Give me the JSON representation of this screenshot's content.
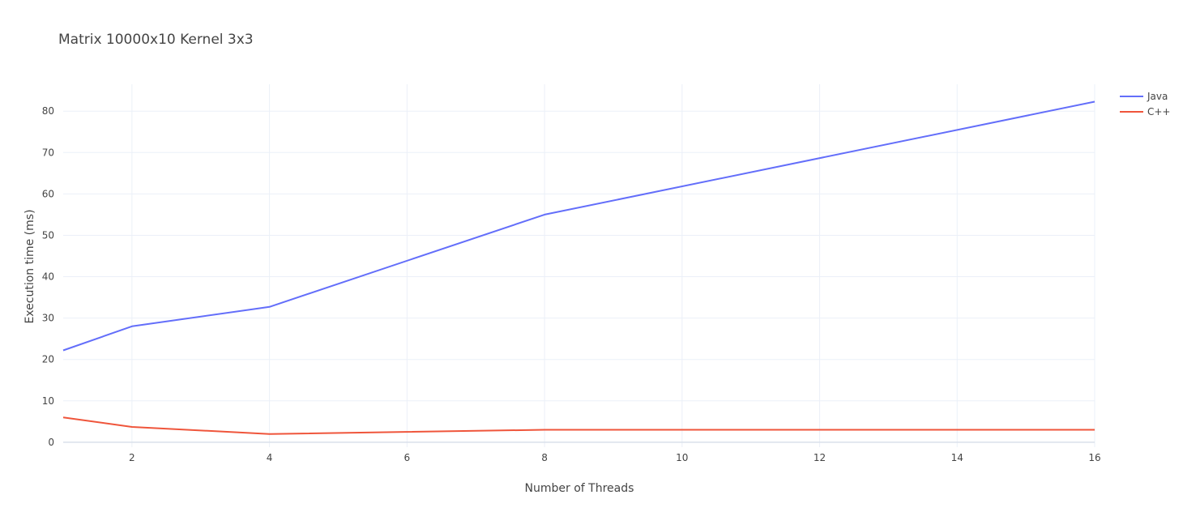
{
  "chart_data": {
    "type": "line",
    "title": "Matrix 10000x10 Kernel 3x3",
    "xlabel": "Number of Threads",
    "ylabel": "Execution time (ms)",
    "xlim": [
      1,
      16
    ],
    "ylim": [
      -1.2,
      86.5
    ],
    "xticks": [
      2,
      4,
      6,
      8,
      10,
      12,
      14,
      16
    ],
    "yticks": [
      0,
      10,
      20,
      30,
      40,
      50,
      60,
      70,
      80
    ],
    "grid": true,
    "legend_position": "top-right",
    "series": [
      {
        "name": "Java",
        "color": "#636efa",
        "x": [
          1,
          2,
          4,
          8,
          16
        ],
        "y": [
          22.2,
          28.0,
          32.7,
          55.0,
          82.3
        ]
      },
      {
        "name": "C++",
        "color": "#ef553b",
        "x": [
          1,
          2,
          4,
          8,
          16
        ],
        "y": [
          6.0,
          3.7,
          2.0,
          3.0,
          3.0
        ]
      }
    ]
  },
  "colors": {
    "grid": "#ebf0f8",
    "zeroline": "#d9e0ea",
    "text": "#444444"
  }
}
